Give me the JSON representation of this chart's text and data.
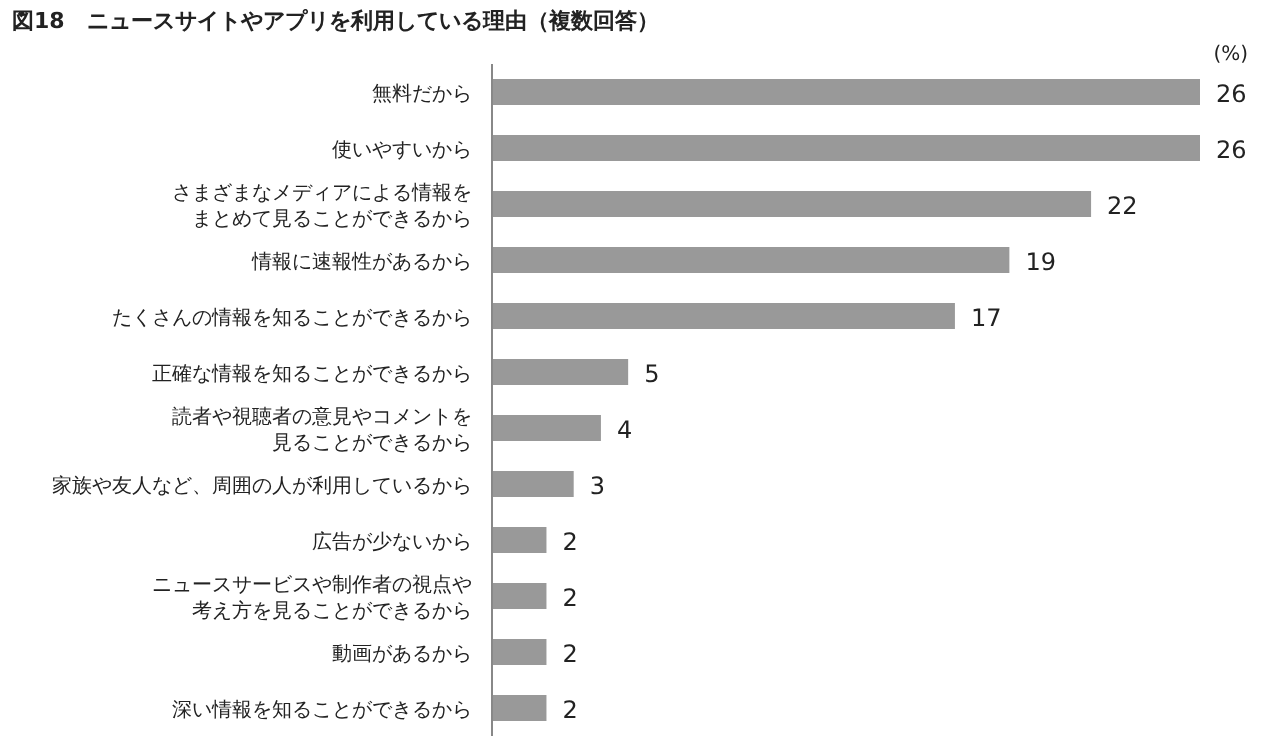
{
  "chart_data": {
    "type": "bar",
    "orientation": "horizontal",
    "title": "図18　ニュースサイトやアプリを利用している理由（複数回答）",
    "xlabel": "(%)",
    "categories": [
      "無料だから",
      "使いやすいから",
      "さまざまなメディアによる情報をまとめて見ることができるから",
      "情報に速報性があるから",
      "たくさんの情報を知ることができるから",
      "正確な情報を知ることができるから",
      "読者や視聴者の意見やコメントを見ることができるから",
      "家族や友人など、周囲の人が利用しているから",
      "広告が少ないから",
      "ニュースサービスや制作者の視点や考え方を見ることができるから",
      "動画があるから",
      "深い情報を知ることができるから"
    ],
    "values": [
      26,
      26,
      22,
      19,
      17,
      5,
      4,
      3,
      2,
      2,
      2,
      2
    ],
    "color": "#999999",
    "data_labels": true
  }
}
